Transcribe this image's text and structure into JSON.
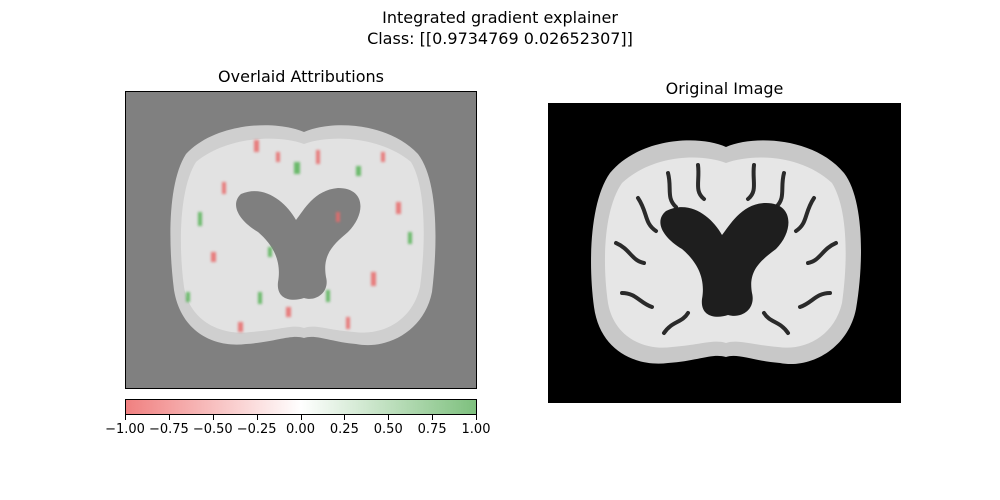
{
  "figure": {
    "title_line1": "Integrated gradient explainer",
    "title_line2": "Class: [[0.9734769  0.02652307]]"
  },
  "panels": {
    "overlay_title": "Overlaid Attributions",
    "original_title": "Original Image"
  },
  "colorbar": {
    "colors": {
      "negative": "#f08080",
      "zero": "#ffffff",
      "positive": "#7ec07e"
    },
    "ticks": [
      "−1.00",
      "−0.75",
      "−0.50",
      "−0.25",
      "0.00",
      "0.25",
      "0.50",
      "0.75",
      "1.00"
    ],
    "range": [
      -1.0,
      1.0
    ]
  },
  "colors": {
    "overlay_background": "#808080",
    "original_background": "#000000"
  }
}
